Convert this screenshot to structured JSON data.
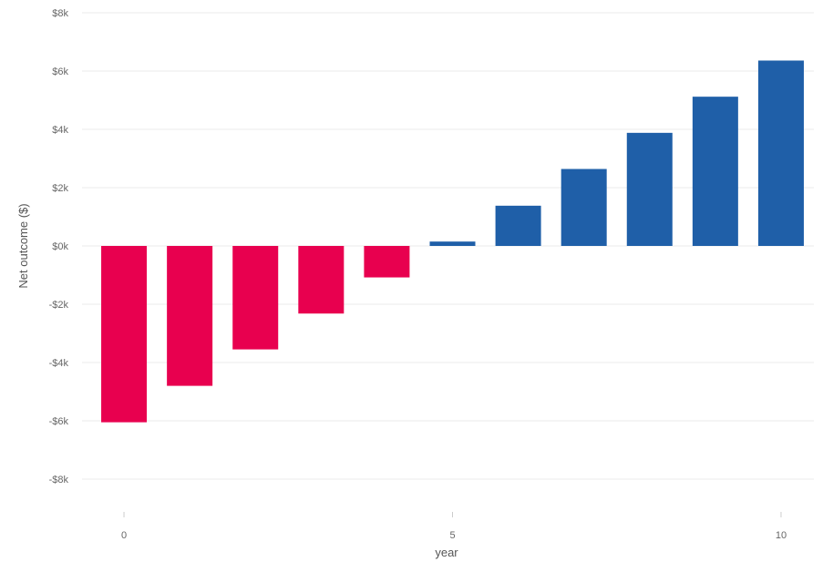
{
  "chart_data": {
    "type": "bar",
    "x": [
      0,
      1,
      2,
      3,
      4,
      5,
      6,
      7,
      8,
      9,
      10
    ],
    "values": [
      -6050,
      -4800,
      -3550,
      -2320,
      -1080,
      150,
      1380,
      2640,
      3880,
      5120,
      6360
    ],
    "xlabel": "year",
    "ylabel": "Net outcome ($)",
    "ylim": [
      -8000,
      8000
    ],
    "xlim": [
      -0.5,
      10.5
    ],
    "y_ticks": [
      {
        "value": 8000,
        "label": "$8k"
      },
      {
        "value": 6000,
        "label": "$6k"
      },
      {
        "value": 4000,
        "label": "$4k"
      },
      {
        "value": 2000,
        "label": "$2k"
      },
      {
        "value": 0,
        "label": "$0k"
      },
      {
        "value": -2000,
        "label": "-$2k"
      },
      {
        "value": -4000,
        "label": "-$4k"
      },
      {
        "value": -6000,
        "label": "-$6k"
      },
      {
        "value": -8000,
        "label": "-$8k"
      }
    ],
    "x_ticks": [
      {
        "value": 0,
        "label": "0"
      },
      {
        "value": 5,
        "label": "5"
      },
      {
        "value": 10,
        "label": "10"
      }
    ],
    "colors": {
      "negative": "#e8004f",
      "positive": "#1f5fa8"
    },
    "grid": true,
    "legend": "none"
  }
}
